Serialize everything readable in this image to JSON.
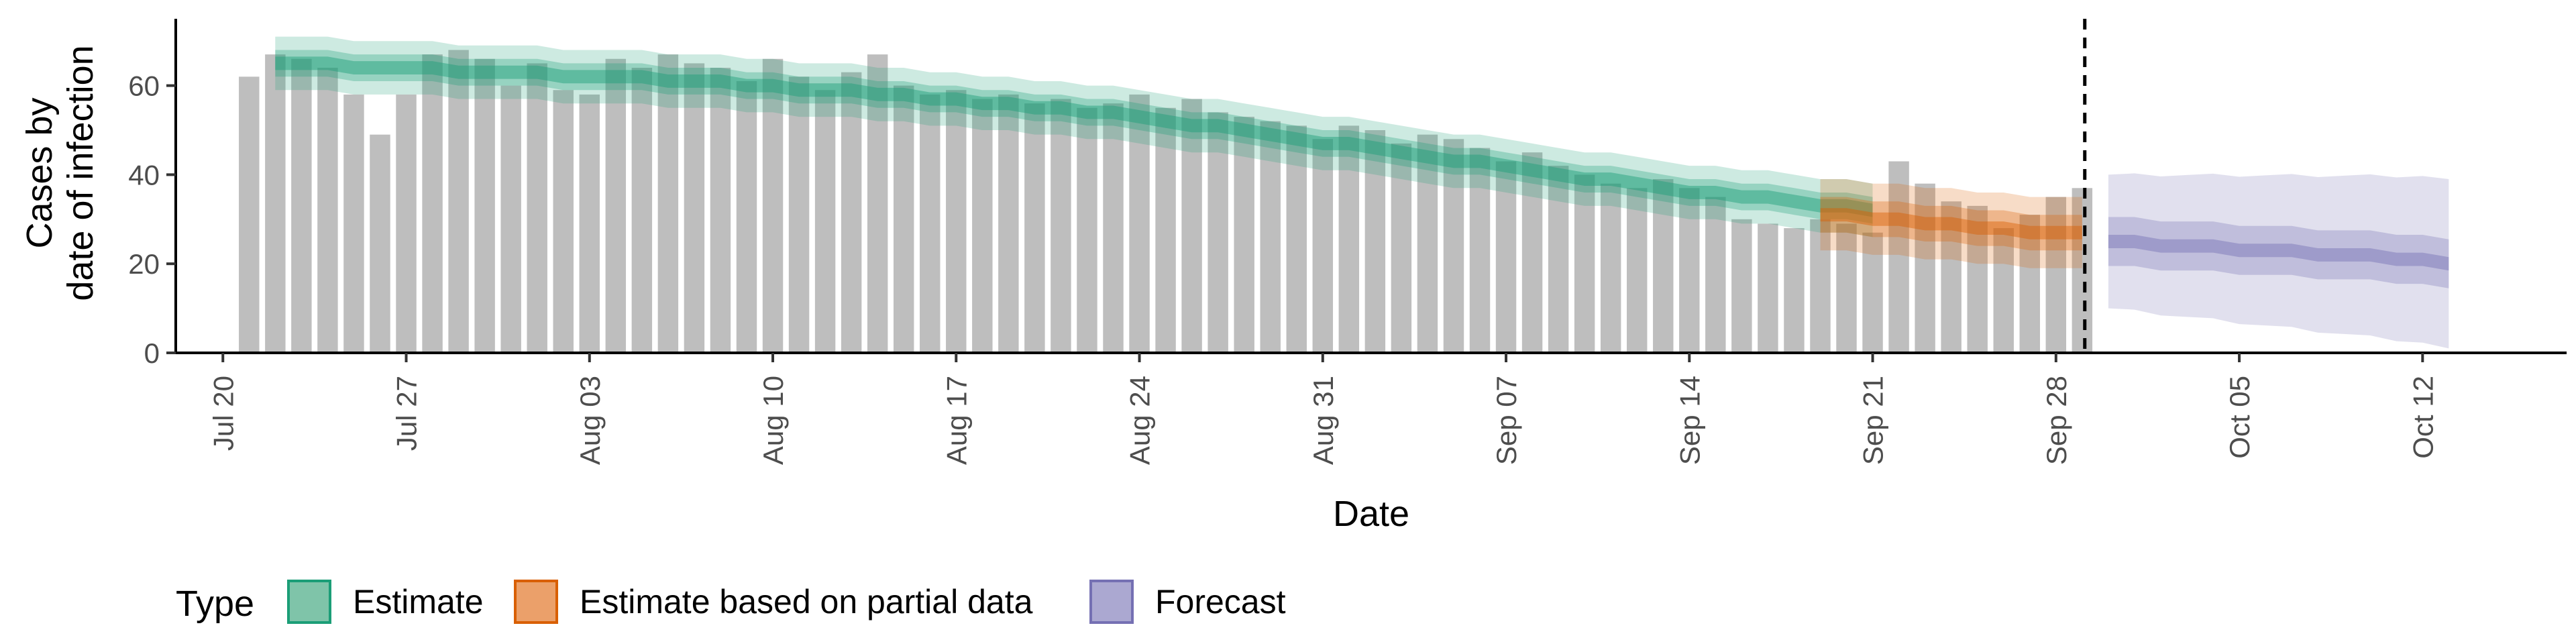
{
  "chart_data": {
    "type": "bar",
    "title": "",
    "xlabel": "Date",
    "ylabel_lines": [
      "Cases by",
      "date of infection"
    ],
    "ylim": [
      0,
      75
    ],
    "y_ticks": [
      0,
      20,
      40,
      60
    ],
    "x_range": [
      -1.8,
      89.5
    ],
    "x_ticks": [
      {
        "label": "Jul 20",
        "day": 0
      },
      {
        "label": "Jul 27",
        "day": 7
      },
      {
        "label": "Aug 03",
        "day": 14
      },
      {
        "label": "Aug 10",
        "day": 21
      },
      {
        "label": "Aug 17",
        "day": 28
      },
      {
        "label": "Aug 24",
        "day": 35
      },
      {
        "label": "Aug 31",
        "day": 42
      },
      {
        "label": "Sep 07",
        "day": 49
      },
      {
        "label": "Sep 14",
        "day": 56
      },
      {
        "label": "Sep 21",
        "day": 63
      },
      {
        "label": "Sep 28",
        "day": 70
      },
      {
        "label": "Oct 05",
        "day": 77
      },
      {
        "label": "Oct 12",
        "day": 84
      }
    ],
    "bars": {
      "start_day": 1,
      "values": [
        62,
        67,
        66,
        64,
        58,
        49,
        58,
        67,
        68,
        66,
        60,
        65,
        59,
        58,
        66,
        64,
        67,
        65,
        64,
        61,
        66,
        62,
        59,
        63,
        67,
        60,
        58,
        59,
        57,
        58,
        56,
        57,
        55,
        56,
        58,
        55,
        57,
        54,
        53,
        52,
        51,
        48,
        51,
        50,
        47,
        49,
        48,
        46,
        43,
        45,
        42,
        40,
        38,
        37,
        39,
        37,
        35,
        30,
        29,
        28,
        30,
        29,
        27,
        43,
        38,
        34,
        33,
        28,
        31,
        35,
        37
      ]
    },
    "forecast_cutoff_day": 71,
    "series": [
      {
        "name": "Estimate",
        "color": "#1b9e77",
        "start_day": 2,
        "median": [
          65,
          65,
          65,
          64,
          64,
          64,
          64,
          63,
          63,
          63,
          63,
          62,
          62,
          62,
          62,
          61,
          61,
          61,
          60,
          60,
          59,
          59,
          59,
          58,
          58,
          57,
          57,
          56,
          56,
          55,
          55,
          54,
          54,
          53,
          52,
          51,
          51,
          50,
          49,
          48,
          47,
          47,
          46,
          45,
          44,
          43,
          43,
          42,
          41,
          40,
          39,
          39,
          38,
          37,
          36,
          36,
          35,
          35,
          34,
          33,
          33,
          32
        ],
        "inner_halfwidth": 1.5,
        "mid_halfwidth": 3,
        "outer_halfwidth": 6
      },
      {
        "name": "Estimate based on partial data",
        "color": "#d95f02",
        "start_day": 61,
        "median": [
          31,
          31,
          30,
          30,
          29,
          29,
          28,
          28,
          27,
          27,
          27
        ],
        "inner_halfwidth": 1.5,
        "mid_halfwidth": 4,
        "outer_halfwidth": 8
      },
      {
        "name": "Forecast",
        "color": "#7570b3",
        "start_day": 72,
        "median": [
          25,
          25,
          24,
          24,
          24,
          23,
          23,
          23,
          22,
          22,
          22,
          21,
          21,
          20
        ],
        "inner_halfwidth": 1.5,
        "mid_halfwidth": 5.5,
        "outer_halfwidth_start": 15,
        "outer_halfwidth_end": 19
      }
    ],
    "legend": {
      "position": "bottom",
      "title": "Type",
      "items": [
        {
          "label": "Estimate",
          "fill": "#7fc4a9",
          "stroke": "#1b9e77"
        },
        {
          "label": "Estimate based on partial data",
          "fill": "#eba06a",
          "stroke": "#d95f02"
        },
        {
          "label": "Forecast",
          "fill": "#aba8d1",
          "stroke": "#7570b3"
        }
      ]
    },
    "grid": false
  }
}
